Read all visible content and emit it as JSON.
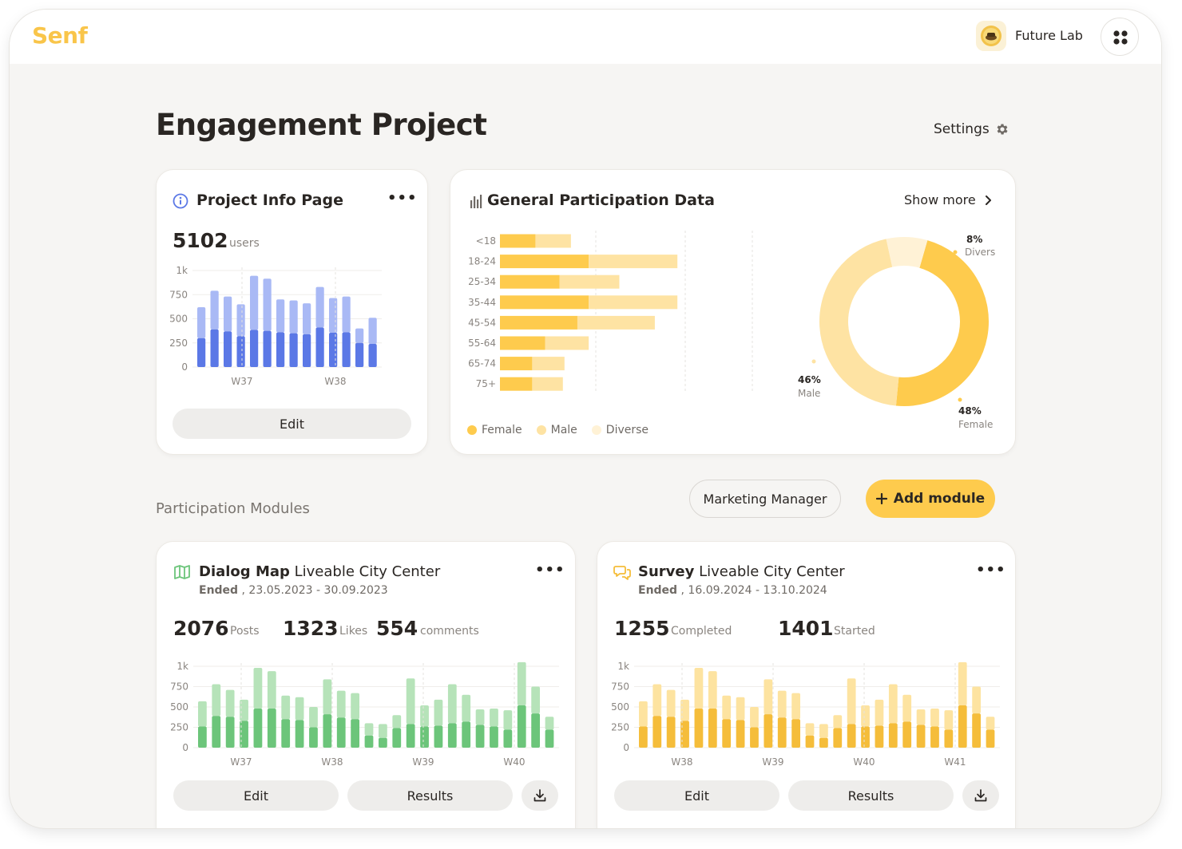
{
  "app": {
    "logo": "Senf",
    "org_name": "Future Lab"
  },
  "page": {
    "title": "Engagement Project",
    "settings_label": "Settings"
  },
  "info_card": {
    "title": "Project Info Page",
    "stat_value": "5102",
    "stat_unit": "users",
    "edit_label": "Edit",
    "chart": {
      "y_ticks": [
        "1k",
        "750",
        "500",
        "250",
        "0"
      ],
      "x_labels": [
        "W37",
        "W38"
      ]
    }
  },
  "participation_card": {
    "title": "General Participation Data",
    "show_more_label": "Show more",
    "legend": [
      "Female",
      "Male",
      "Diverse"
    ],
    "donut_labels": {
      "diverse_pct": "8%",
      "diverse_name": "Divers",
      "male_pct": "46%",
      "male_name": "Male",
      "female_pct": "48%",
      "female_name": "Female"
    }
  },
  "modules_section": {
    "label": "Participation Modules",
    "marketing_label": "Marketing Manager",
    "add_label": "Add module"
  },
  "dialog_module": {
    "type": "Dialog Map",
    "name": "Liveable City Center",
    "status": "Ended",
    "dates": " , 23.05.2023 - 30.09.2023",
    "stat1_value": "2076",
    "stat1_unit": "Posts",
    "stat2_value": "1323",
    "stat2_unit": "Likes",
    "stat3_value": "554",
    "stat3_unit": "comments",
    "edit_label": "Edit",
    "results_label": "Results"
  },
  "survey_module": {
    "type": "Survey",
    "name": "Liveable City Center",
    "status": "Ended",
    "dates": " , 16.09.2024 - 13.10.2024",
    "stat1_value": "1255",
    "stat1_unit": "Completed",
    "stat2_value": "1401",
    "stat2_unit": "Started",
    "edit_label": "Edit",
    "results_label": "Results"
  },
  "colors": {
    "brand_yellow": "#fecb4d",
    "blue_dark": "#5b78e6",
    "blue_light": "#a9b9f5",
    "green_dark": "#6cc57a",
    "green_light": "#b6e3b9",
    "yellow_dark": "#f5bd3a",
    "yellow_light": "#fde3a0",
    "female": "#fecb4d",
    "male": "#fee3a3",
    "diverse": "#fff2d6"
  },
  "chart_data": [
    {
      "type": "bar",
      "stacked": true,
      "ylim": [
        0,
        1000
      ],
      "x_ticks": [
        "W37",
        "W38"
      ],
      "series": [
        {
          "values": [
            300,
            390,
            370,
            320,
            385,
            375,
            360,
            350,
            340,
            410,
            355,
            360,
            250,
            240
          ]
        },
        {
          "values": [
            320,
            400,
            360,
            330,
            560,
            540,
            340,
            340,
            320,
            420,
            360,
            370,
            150,
            270
          ]
        }
      ]
    },
    {
      "type": "bar",
      "orientation": "horizontal",
      "stacked": true,
      "categories": [
        "<18",
        "18-24",
        "25-34",
        "35-44",
        "45-54",
        "55-64",
        "65-74",
        "75+"
      ],
      "series": [
        {
          "name": "Female",
          "values": [
            22,
            55,
            37,
            55,
            48,
            28,
            20,
            20
          ]
        },
        {
          "name": "Male",
          "values": [
            22,
            55,
            37,
            55,
            48,
            27,
            20,
            19
          ]
        }
      ]
    },
    {
      "type": "pie",
      "categories": [
        "Female",
        "Male",
        "Divers"
      ],
      "values": [
        48,
        46,
        8
      ]
    },
    {
      "type": "bar",
      "stacked": true,
      "ylim": [
        0,
        1000
      ],
      "x_ticks": [
        "W37",
        "W38",
        "W39",
        "W40"
      ],
      "series": [
        {
          "values": [
            260,
            390,
            380,
            330,
            480,
            480,
            350,
            340,
            250,
            410,
            370,
            350,
            150,
            120,
            240,
            290,
            260,
            270,
            300,
            320,
            280,
            260,
            220,
            520,
            420,
            220
          ]
        },
        {
          "values": [
            310,
            390,
            330,
            260,
            500,
            460,
            290,
            280,
            250,
            430,
            330,
            320,
            150,
            170,
            160,
            560,
            260,
            320,
            480,
            330,
            190,
            220,
            240,
            530,
            330,
            160
          ]
        }
      ]
    },
    {
      "type": "bar",
      "stacked": true,
      "ylim": [
        0,
        1000
      ],
      "x_ticks": [
        "W38",
        "W39",
        "W40",
        "W41"
      ],
      "series": [
        {
          "values": [
            260,
            390,
            380,
            330,
            480,
            480,
            350,
            340,
            250,
            410,
            370,
            350,
            150,
            120,
            240,
            290,
            260,
            270,
            300,
            320,
            280,
            260,
            220,
            520,
            420,
            220
          ]
        },
        {
          "values": [
            310,
            390,
            330,
            260,
            500,
            460,
            290,
            280,
            250,
            430,
            330,
            320,
            150,
            170,
            160,
            560,
            260,
            320,
            480,
            330,
            190,
            220,
            240,
            530,
            330,
            160
          ]
        }
      ]
    }
  ]
}
